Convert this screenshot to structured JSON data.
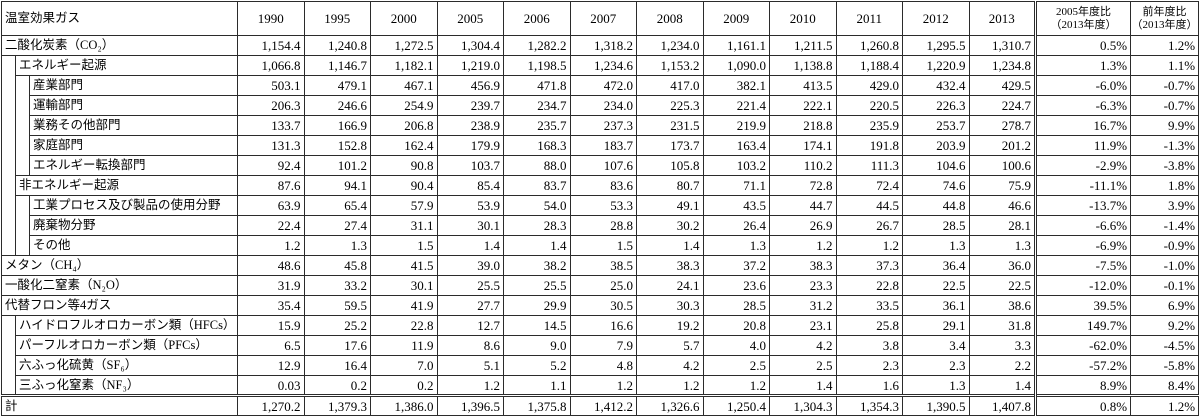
{
  "table": {
    "header": {
      "category": "温室効果ガス",
      "years": [
        "1990",
        "1995",
        "2000",
        "2005",
        "2006",
        "2007",
        "2008",
        "2009",
        "2010",
        "2011",
        "2012",
        "2013"
      ],
      "change_vs_2005": {
        "line1": "2005年度比",
        "line2": "（2013年度）"
      },
      "change_vs_prev": {
        "line1": "前年度比",
        "line2": "（2013年度）"
      }
    },
    "rows": [
      {
        "label": "二酸化炭素（CO₂）",
        "values": [
          "1,154.4",
          "1,240.8",
          "1,272.5",
          "1,304.4",
          "1,282.2",
          "1,318.2",
          "1,234.0",
          "1,161.1",
          "1,211.5",
          "1,260.8",
          "1,295.5",
          "1,310.7"
        ],
        "change_vs_2005": "0.5%",
        "change_vs_prev": "1.2%",
        "children": [
          {
            "label": "エネルギー起源",
            "values": [
              "1,066.8",
              "1,146.7",
              "1,182.1",
              "1,219.0",
              "1,198.5",
              "1,234.6",
              "1,153.2",
              "1,090.0",
              "1,138.8",
              "1,188.4",
              "1,220.9",
              "1,234.8"
            ],
            "change_vs_2005": "1.3%",
            "change_vs_prev": "1.1%",
            "children": [
              {
                "label": "産業部門",
                "values": [
                  "503.1",
                  "479.1",
                  "467.1",
                  "456.9",
                  "471.8",
                  "472.0",
                  "417.0",
                  "382.1",
                  "413.5",
                  "429.0",
                  "432.4",
                  "429.5"
                ],
                "change_vs_2005": "-6.0%",
                "change_vs_prev": "-0.7%"
              },
              {
                "label": "運輸部門",
                "values": [
                  "206.3",
                  "246.6",
                  "254.9",
                  "239.7",
                  "234.7",
                  "234.0",
                  "225.3",
                  "221.4",
                  "222.1",
                  "220.5",
                  "226.3",
                  "224.7"
                ],
                "change_vs_2005": "-6.3%",
                "change_vs_prev": "-0.7%"
              },
              {
                "label": "業務その他部門",
                "values": [
                  "133.7",
                  "166.9",
                  "206.8",
                  "238.9",
                  "235.7",
                  "237.3",
                  "231.5",
                  "219.9",
                  "218.8",
                  "235.9",
                  "253.7",
                  "278.7"
                ],
                "change_vs_2005": "16.7%",
                "change_vs_prev": "9.9%"
              },
              {
                "label": "家庭部門",
                "values": [
                  "131.3",
                  "152.8",
                  "162.4",
                  "179.9",
                  "168.3",
                  "183.7",
                  "173.7",
                  "163.4",
                  "174.1",
                  "191.8",
                  "203.9",
                  "201.2"
                ],
                "change_vs_2005": "11.9%",
                "change_vs_prev": "-1.3%"
              },
              {
                "label": "エネルギー転換部門",
                "values": [
                  "92.4",
                  "101.2",
                  "90.8",
                  "103.7",
                  "88.0",
                  "107.6",
                  "105.8",
                  "103.2",
                  "110.2",
                  "111.3",
                  "104.6",
                  "100.6"
                ],
                "change_vs_2005": "-2.9%",
                "change_vs_prev": "-3.8%"
              }
            ]
          },
          {
            "label": "非エネルギー起源",
            "values": [
              "87.6",
              "94.1",
              "90.4",
              "85.4",
              "83.7",
              "83.6",
              "80.7",
              "71.1",
              "72.8",
              "72.4",
              "74.6",
              "75.9"
            ],
            "change_vs_2005": "-11.1%",
            "change_vs_prev": "1.8%",
            "children": [
              {
                "label": "工業プロセス及び製品の使用分野",
                "values": [
                  "63.9",
                  "65.4",
                  "57.9",
                  "53.9",
                  "54.0",
                  "53.3",
                  "49.1",
                  "43.5",
                  "44.7",
                  "44.5",
                  "44.8",
                  "46.6"
                ],
                "change_vs_2005": "-13.7%",
                "change_vs_prev": "3.9%"
              },
              {
                "label": "廃棄物分野",
                "values": [
                  "22.4",
                  "27.4",
                  "31.1",
                  "30.1",
                  "28.3",
                  "28.8",
                  "30.2",
                  "26.4",
                  "26.9",
                  "26.7",
                  "28.5",
                  "28.1"
                ],
                "change_vs_2005": "-6.6%",
                "change_vs_prev": "-1.4%"
              },
              {
                "label": "その他",
                "values": [
                  "1.2",
                  "1.3",
                  "1.5",
                  "1.4",
                  "1.4",
                  "1.5",
                  "1.4",
                  "1.3",
                  "1.2",
                  "1.2",
                  "1.3",
                  "1.3"
                ],
                "change_vs_2005": "-6.9%",
                "change_vs_prev": "-0.9%"
              }
            ]
          }
        ]
      },
      {
        "label": "メタン（CH₄）",
        "values": [
          "48.6",
          "45.8",
          "41.5",
          "39.0",
          "38.2",
          "38.5",
          "38.3",
          "37.2",
          "38.3",
          "37.3",
          "36.4",
          "36.0"
        ],
        "change_vs_2005": "-7.5%",
        "change_vs_prev": "-1.0%"
      },
      {
        "label": "一酸化二窒素（N₂O）",
        "values": [
          "31.9",
          "33.2",
          "30.1",
          "25.5",
          "25.5",
          "25.0",
          "24.1",
          "23.6",
          "23.3",
          "22.8",
          "22.5",
          "22.5"
        ],
        "change_vs_2005": "-12.0%",
        "change_vs_prev": "-0.1%"
      },
      {
        "label": "代替フロン等4ガス",
        "values": [
          "35.4",
          "59.5",
          "41.9",
          "27.7",
          "29.9",
          "30.5",
          "30.3",
          "28.5",
          "31.2",
          "33.5",
          "36.1",
          "38.6"
        ],
        "change_vs_2005": "39.5%",
        "change_vs_prev": "6.9%",
        "children": [
          {
            "label": "ハイドロフルオロカーボン類（HFCs）",
            "values": [
              "15.9",
              "25.2",
              "22.8",
              "12.7",
              "14.5",
              "16.6",
              "19.2",
              "20.8",
              "23.1",
              "25.8",
              "29.1",
              "31.8"
            ],
            "change_vs_2005": "149.7%",
            "change_vs_prev": "9.2%"
          },
          {
            "label": "パーフルオロカーボン類（PFCs）",
            "values": [
              "6.5",
              "17.6",
              "11.9",
              "8.6",
              "9.0",
              "7.9",
              "5.7",
              "4.0",
              "4.2",
              "3.8",
              "3.4",
              "3.3"
            ],
            "change_vs_2005": "-62.0%",
            "change_vs_prev": "-4.5%"
          },
          {
            "label": "六ふっ化硫黄（SF₆）",
            "values": [
              "12.9",
              "16.4",
              "7.0",
              "5.1",
              "5.2",
              "4.8",
              "4.2",
              "2.5",
              "2.5",
              "2.3",
              "2.3",
              "2.2"
            ],
            "change_vs_2005": "-57.2%",
            "change_vs_prev": "-5.8%"
          },
          {
            "label": "三ふっ化窒素（NF₃）",
            "values": [
              "0.03",
              "0.2",
              "0.2",
              "1.2",
              "1.1",
              "1.2",
              "1.2",
              "1.2",
              "1.4",
              "1.6",
              "1.3",
              "1.4"
            ],
            "change_vs_2005": "8.9%",
            "change_vs_prev": "8.4%"
          }
        ]
      }
    ],
    "total": {
      "label": "計",
      "values": [
        "1,270.2",
        "1,379.3",
        "1,386.0",
        "1,396.5",
        "1,375.8",
        "1,412.2",
        "1,326.6",
        "1,250.4",
        "1,304.3",
        "1,354.3",
        "1,390.5",
        "1,407.8"
      ],
      "change_vs_2005": "0.8%",
      "change_vs_prev": "1.2%"
    }
  }
}
